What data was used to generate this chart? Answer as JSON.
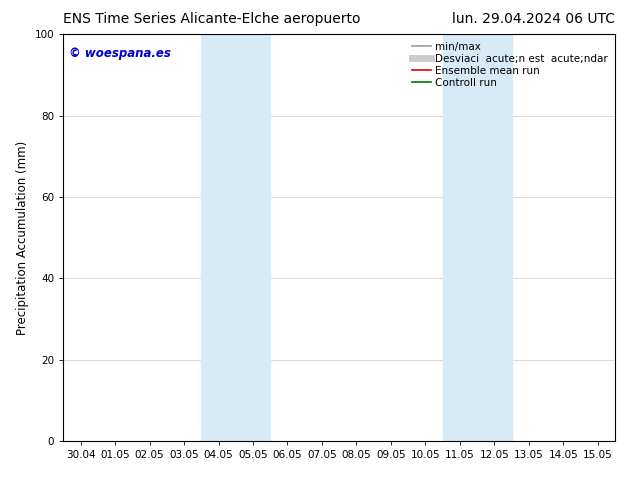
{
  "title_left": "ENS Time Series Alicante-Elche aeropuerto",
  "title_right": "lun. 29.04.2024 06 UTC",
  "ylabel": "Precipitation Accumulation (mm)",
  "watermark": "© woespana.es",
  "ylim": [
    0,
    100
  ],
  "yticks": [
    0,
    20,
    40,
    60,
    80,
    100
  ],
  "xtick_labels": [
    "30.04",
    "01.05",
    "02.05",
    "03.05",
    "04.05",
    "05.05",
    "06.05",
    "07.05",
    "08.05",
    "09.05",
    "10.05",
    "11.05",
    "12.05",
    "13.05",
    "14.05",
    "15.05"
  ],
  "shaded_regions": [
    {
      "xstart": 4,
      "xend": 6,
      "color": "#d6eaf8",
      "alpha": 1.0
    },
    {
      "xstart": 11,
      "xend": 13,
      "color": "#d6eaf8",
      "alpha": 1.0
    }
  ],
  "legend_entries": [
    {
      "label": "min/max",
      "color": "#999999",
      "linestyle": "-",
      "linewidth": 1.2
    },
    {
      "label": "Desviaci  acute;n est  acute;ndar",
      "color": "#cccccc",
      "linestyle": "-",
      "linewidth": 5
    },
    {
      "label": "Ensemble mean run",
      "color": "#dd0000",
      "linestyle": "-",
      "linewidth": 1.2
    },
    {
      "label": "Controll run",
      "color": "#007700",
      "linestyle": "-",
      "linewidth": 1.2
    }
  ],
  "bg_color": "#ffffff",
  "plot_bg_color": "#ffffff",
  "grid_color": "#cccccc",
  "title_fontsize": 10,
  "tick_fontsize": 7.5,
  "ylabel_fontsize": 8.5,
  "watermark_color": "#0000cc",
  "watermark_fontsize": 8.5,
  "legend_fontsize": 7.5
}
